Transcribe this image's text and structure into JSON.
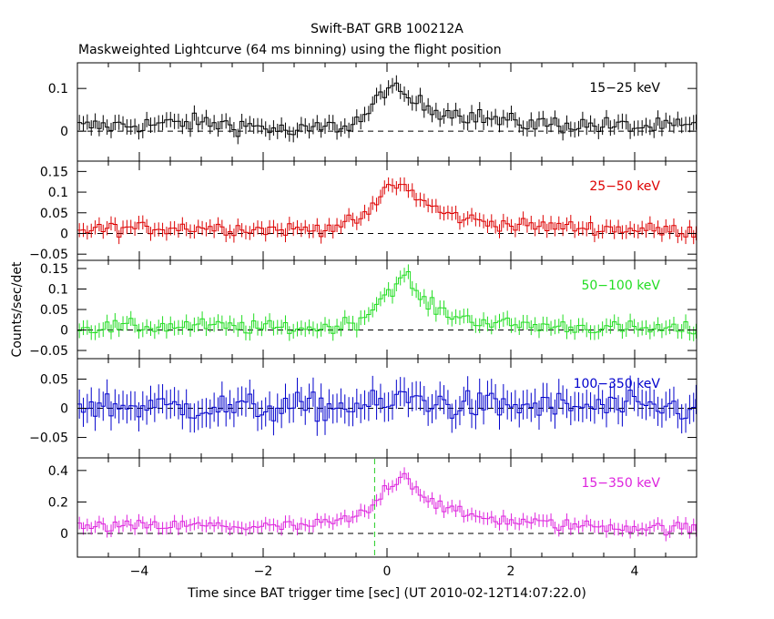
{
  "title": "Swift-BAT GRB 100212A",
  "subtitle": "Maskweighted Lightcurve (64 ms binning) using the flight position",
  "xlabel": "Time since BAT trigger time [sec] (UT 2010-02-12T14:07:22.0)",
  "ylabel": "Counts/sec/det",
  "chart_data": {
    "type": "line",
    "x_range": [
      -5,
      5
    ],
    "x_ticks": [
      -4,
      -2,
      0,
      2,
      4
    ],
    "x_tick_labels": [
      "−4",
      "−2",
      "0",
      "2",
      "4"
    ],
    "bin_width_s": 0.064,
    "grid": false,
    "panels": [
      {
        "name": "15−25 keV",
        "color": "#000000",
        "ylim": [
          -0.07,
          0.16
        ],
        "y_ticks": [
          0,
          0.1
        ],
        "y_tick_labels": [
          "0",
          "0.1"
        ],
        "anchors": {
          "t": [
            -5,
            -4,
            -3,
            -2,
            -1.5,
            -1.2,
            -0.6,
            -0.3,
            -0.1,
            0,
            0.15,
            0.3,
            0.5,
            0.8,
            1.2,
            1.6,
            2,
            3,
            4,
            5
          ],
          "y": [
            0.01,
            0.015,
            0.02,
            0.01,
            -0.005,
            0.005,
            0.015,
            0.04,
            0.085,
            0.11,
            0.09,
            0.08,
            0.065,
            0.05,
            0.04,
            0.03,
            0.02,
            0.015,
            0.01,
            0.01
          ]
        },
        "noise": 0.02,
        "err": 0.018
      },
      {
        "name": "25−50 keV",
        "color": "#dd0000",
        "ylim": [
          -0.065,
          0.175
        ],
        "y_ticks": [
          -0.05,
          0,
          0.05,
          0.1,
          0.15
        ],
        "y_tick_labels": [
          "−0.05",
          "0",
          "0.05",
          "0.1",
          "0.15"
        ],
        "anchors": {
          "t": [
            -5,
            -3,
            -2,
            -1.2,
            -0.6,
            -0.3,
            -0.1,
            0,
            0.2,
            0.4,
            0.6,
            0.9,
            1.3,
            2,
            3,
            4,
            5
          ],
          "y": [
            0.01,
            0.015,
            0.01,
            0.01,
            0.025,
            0.045,
            0.09,
            0.115,
            0.12,
            0.1,
            0.075,
            0.05,
            0.035,
            0.02,
            0.015,
            0.01,
            0.005
          ]
        },
        "noise": 0.016,
        "err": 0.017
      },
      {
        "name": "50−100 keV",
        "color": "#22dd22",
        "ylim": [
          -0.07,
          0.17
        ],
        "y_ticks": [
          -0.05,
          0,
          0.05,
          0.1,
          0.15
        ],
        "y_tick_labels": [
          "−0.05",
          "0",
          "0.05",
          "0.1",
          "0.15"
        ],
        "anchors": {
          "t": [
            -5,
            -3,
            -2,
            -1,
            -0.5,
            -0.3,
            -0.1,
            0,
            0.2,
            0.35,
            0.5,
            0.8,
            1.2,
            1.8,
            2.5,
            3.5,
            5
          ],
          "y": [
            0.005,
            0.01,
            0.005,
            0.005,
            0.02,
            0.04,
            0.08,
            0.09,
            0.12,
            0.13,
            0.08,
            0.05,
            0.03,
            0.015,
            0.01,
            0.005,
            0.0
          ]
        },
        "noise": 0.017,
        "err": 0.018
      },
      {
        "name": "100−350 keV",
        "color": "#0000cc",
        "ylim": [
          -0.085,
          0.085
        ],
        "y_ticks": [
          -0.05,
          0,
          0.05
        ],
        "y_tick_labels": [
          "−0.05",
          "0",
          "0.05"
        ],
        "anchors": {
          "t": [
            -5,
            -2,
            0,
            0.3,
            1,
            5
          ],
          "y": [
            0.005,
            0.0,
            0.005,
            0.02,
            0.005,
            0.0
          ]
        },
        "noise": 0.024,
        "err": 0.025
      },
      {
        "name": "15−350 keV",
        "color": "#dd22dd",
        "ylim": [
          -0.15,
          0.48
        ],
        "y_ticks": [
          0,
          0.2,
          0.4
        ],
        "y_tick_labels": [
          "0",
          "0.2",
          "0.4"
        ],
        "anchors": {
          "t": [
            -5,
            -3,
            -2,
            -1.2,
            -0.6,
            -0.3,
            -0.1,
            0,
            0.15,
            0.3,
            0.5,
            0.8,
            1.2,
            2,
            3,
            4,
            5
          ],
          "y": [
            0.04,
            0.05,
            0.04,
            0.05,
            0.09,
            0.14,
            0.24,
            0.3,
            0.34,
            0.38,
            0.27,
            0.19,
            0.12,
            0.08,
            0.05,
            0.04,
            0.03
          ]
        },
        "noise": 0.038,
        "err": 0.04,
        "marker_t": -0.2,
        "marker_color": "#22cc22"
      }
    ]
  }
}
